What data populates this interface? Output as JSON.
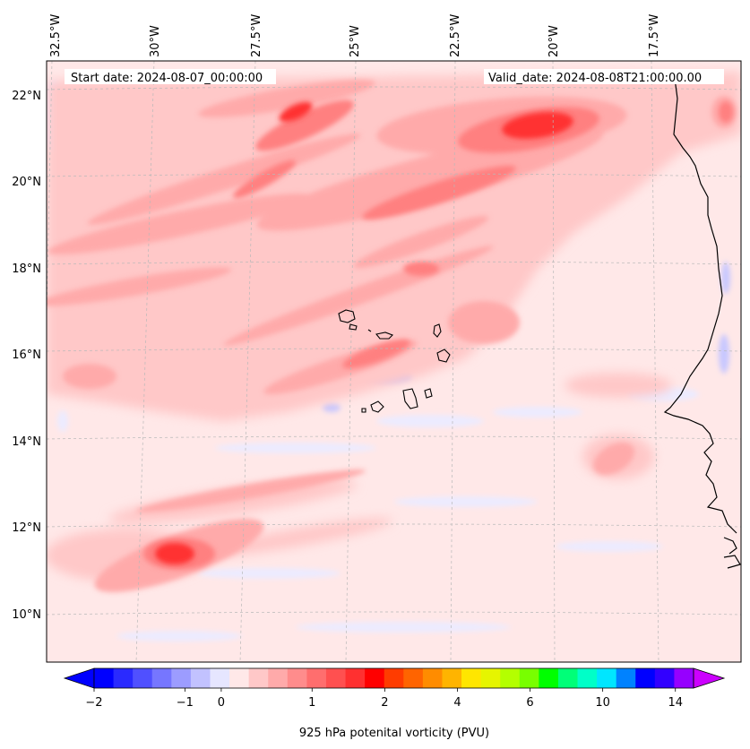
{
  "header": {
    "start_date": "Start date: 2024-08-07_00:00:00",
    "valid_date": "Valid_date: 2024-08-08T21:00:00.00"
  },
  "axes": {
    "lon_labels": [
      "32.5°W",
      "30°W",
      "27.5°W",
      "25°W",
      "22.5°W",
      "20°W",
      "17.5°W"
    ],
    "lat_labels": [
      "22°N",
      "20°N",
      "18°N",
      "16°N",
      "14°N",
      "12°N",
      "10°N"
    ]
  },
  "colorbar": {
    "label": "925 hPa potenital vorticity (PVU)",
    "tick_labels": [
      "−2",
      "−1",
      "0",
      "1",
      "2",
      "4",
      "6",
      "10",
      "14"
    ],
    "colors": [
      "#0000ff",
      "#2a2aff",
      "#5050ff",
      "#7676ff",
      "#9c9cff",
      "#c2c2ff",
      "#e6e6ff",
      "#ffe8e8",
      "#ffc8c8",
      "#ffaaaa",
      "#ff8c8c",
      "#ff6e6e",
      "#ff5050",
      "#ff3030",
      "#ff0000",
      "#ff3c00",
      "#ff6400",
      "#ff8c00",
      "#ffb400",
      "#ffe600",
      "#e6f500",
      "#b4ff00",
      "#78ff00",
      "#00ff00",
      "#00ff78",
      "#00ffc8",
      "#00e6ff",
      "#0082ff",
      "#0000ff",
      "#3200ff",
      "#9600ff"
    ],
    "extend_low_color": "#0000ff",
    "extend_high_color": "#cc00ff"
  },
  "colors": {
    "background_field": "#ffe8e8",
    "coastline": "#000000",
    "gridline": "#b0b0b0"
  }
}
